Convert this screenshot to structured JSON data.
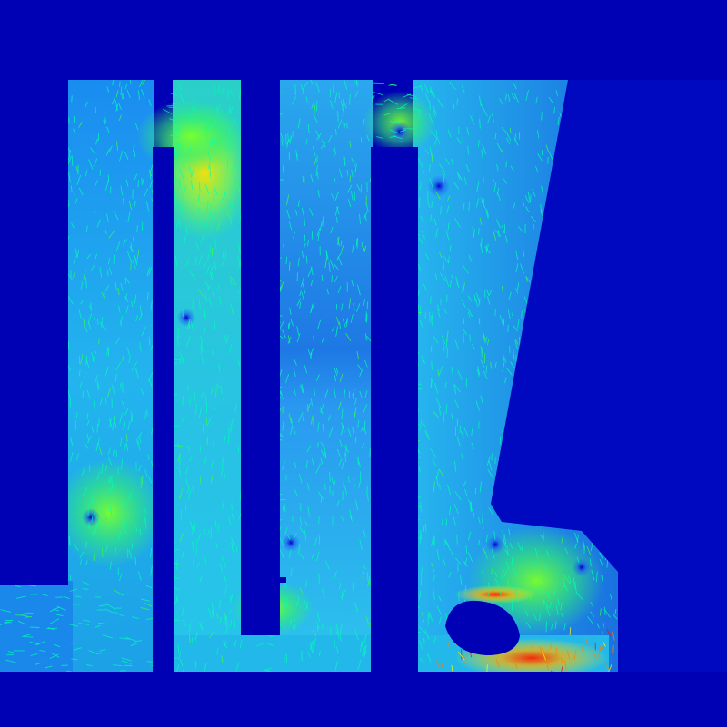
{
  "figure": {
    "kind": "cfd-velocity-vector-field",
    "colormap": "jet",
    "background_color": "#0000b4",
    "colormap_stops": [
      "#0000b4",
      "#0050ff",
      "#00c8ff",
      "#00ffb4",
      "#3cff3c",
      "#ffff00",
      "#ff8000",
      "#ff0000"
    ],
    "regions": [
      {
        "id": "left-outer-channel",
        "level": 0.38
      },
      {
        "id": "left-inner-channel",
        "level": 0.45
      },
      {
        "id": "middle-channel",
        "level": 0.4
      },
      {
        "id": "right-outlet-channel",
        "level": 0.36
      },
      {
        "id": "inlet-duct",
        "level": 0.42
      },
      {
        "id": "bottom-collector",
        "level": 0.44
      }
    ],
    "hotspots": [
      {
        "id": "top-left-bend",
        "level": 0.72
      },
      {
        "id": "mid-left-vortex",
        "level": 0.65
      },
      {
        "id": "top-middle-vortex",
        "level": 0.6
      },
      {
        "id": "bottom-right-jet",
        "level": 0.98
      },
      {
        "id": "bottom-right-cluster",
        "level": 0.75
      }
    ]
  }
}
